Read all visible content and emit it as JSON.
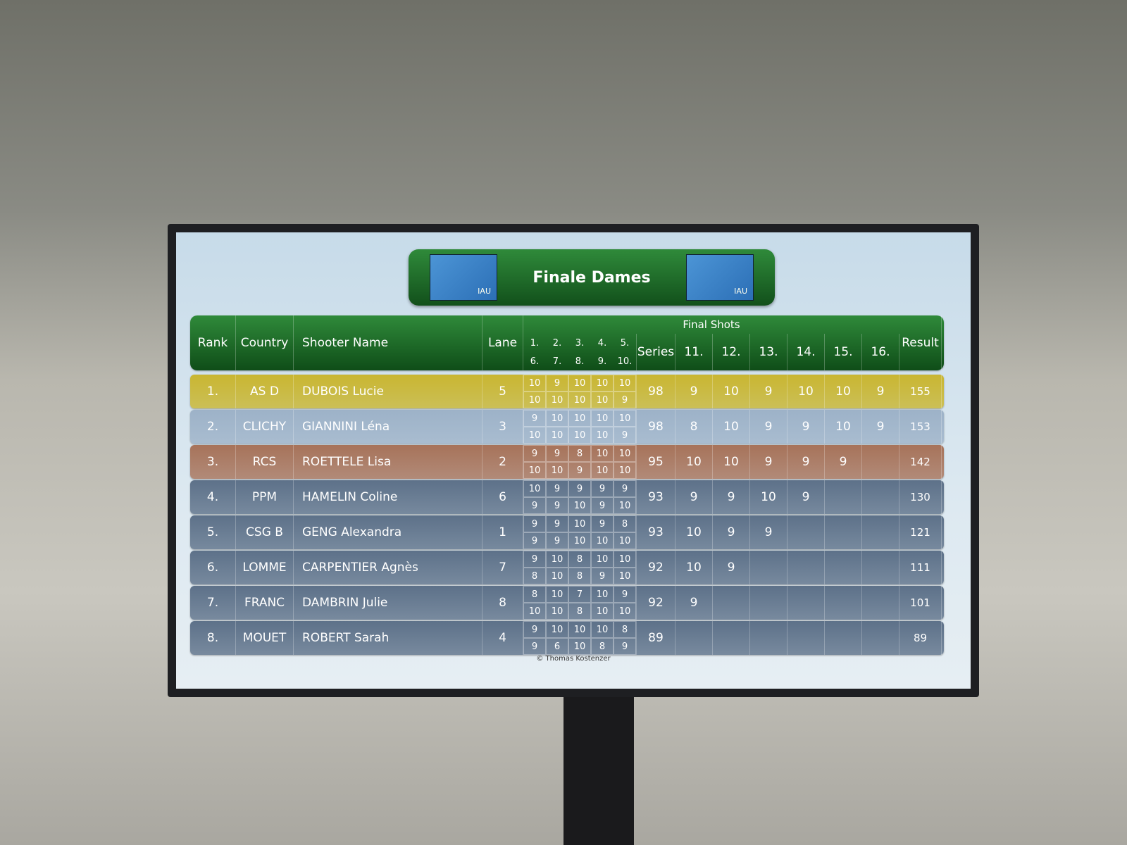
{
  "header": {
    "title": "Finale Dames",
    "logo_text": "IAU"
  },
  "table": {
    "columns": {
      "rank": "Rank",
      "country": "Country",
      "name": "Shooter Name",
      "lane": "Lane",
      "final_shots": "Final Shots",
      "series": "Series",
      "result": "Result",
      "shots_top": [
        "1.",
        "2.",
        "3.",
        "4.",
        "5."
      ],
      "shots_bottom": [
        "6.",
        "7.",
        "8.",
        "9.",
        "10."
      ],
      "extra": [
        "11.",
        "12.",
        "13.",
        "14.",
        "15.",
        "16."
      ]
    },
    "rows": [
      {
        "rank": "1.",
        "country": "AS D",
        "name": "DUBOIS Lucie",
        "lane": 5,
        "shots_top": [
          10,
          9,
          10,
          10,
          10
        ],
        "shots_bottom": [
          10,
          10,
          10,
          10,
          9
        ],
        "series": 98,
        "extra": [
          9,
          10,
          9,
          10,
          10,
          9
        ],
        "result": 155,
        "color": "#c9b631"
      },
      {
        "rank": "2.",
        "country": "CLICHY",
        "name": "GIANNINI Léna",
        "lane": 3,
        "shots_top": [
          9,
          10,
          10,
          10,
          10
        ],
        "shots_bottom": [
          10,
          10,
          10,
          10,
          9
        ],
        "series": 98,
        "extra": [
          8,
          10,
          9,
          9,
          10,
          9
        ],
        "result": 153,
        "color": "#9db2c8"
      },
      {
        "rank": "3.",
        "country": "RCS",
        "name": "ROETTELE Lisa",
        "lane": 2,
        "shots_top": [
          9,
          9,
          8,
          10,
          10
        ],
        "shots_bottom": [
          10,
          10,
          9,
          10,
          10
        ],
        "series": 95,
        "extra": [
          10,
          10,
          9,
          9,
          9
        ],
        "result": 142,
        "color": "#a7735a"
      },
      {
        "rank": "4.",
        "country": "PPM",
        "name": "HAMELIN Coline",
        "lane": 6,
        "shots_top": [
          10,
          9,
          9,
          9,
          9
        ],
        "shots_bottom": [
          9,
          9,
          10,
          9,
          10
        ],
        "series": 93,
        "extra": [
          9,
          9,
          10,
          9
        ],
        "result": 130,
        "color": "#5d7189"
      },
      {
        "rank": "5.",
        "country": "CSG B",
        "name": "GENG Alexandra",
        "lane": 1,
        "shots_top": [
          9,
          9,
          10,
          9,
          8
        ],
        "shots_bottom": [
          9,
          9,
          10,
          10,
          10
        ],
        "series": 93,
        "extra": [
          10,
          9,
          9
        ],
        "result": 121,
        "color": "#5d7189"
      },
      {
        "rank": "6.",
        "country": "LOMME",
        "name": "CARPENTIER Agnès",
        "lane": 7,
        "shots_top": [
          9,
          10,
          8,
          10,
          10
        ],
        "shots_bottom": [
          8,
          10,
          8,
          9,
          10
        ],
        "series": 92,
        "extra": [
          10,
          9
        ],
        "result": 111,
        "color": "#5d7189"
      },
      {
        "rank": "7.",
        "country": "FRANC",
        "name": "DAMBRIN Julie",
        "lane": 8,
        "shots_top": [
          8,
          10,
          7,
          10,
          9
        ],
        "shots_bottom": [
          10,
          10,
          8,
          10,
          10
        ],
        "series": 92,
        "extra": [
          9
        ],
        "result": 101,
        "color": "#5d7189"
      },
      {
        "rank": "8.",
        "country": "MOUET",
        "name": "ROBERT Sarah",
        "lane": 4,
        "shots_top": [
          9,
          10,
          10,
          10,
          8
        ],
        "shots_bottom": [
          9,
          6,
          10,
          8,
          9
        ],
        "series": 89,
        "extra": [],
        "result": 89,
        "color": "#5d7189"
      }
    ]
  },
  "footer": {
    "credit": "© Thomas Kostenzer"
  }
}
